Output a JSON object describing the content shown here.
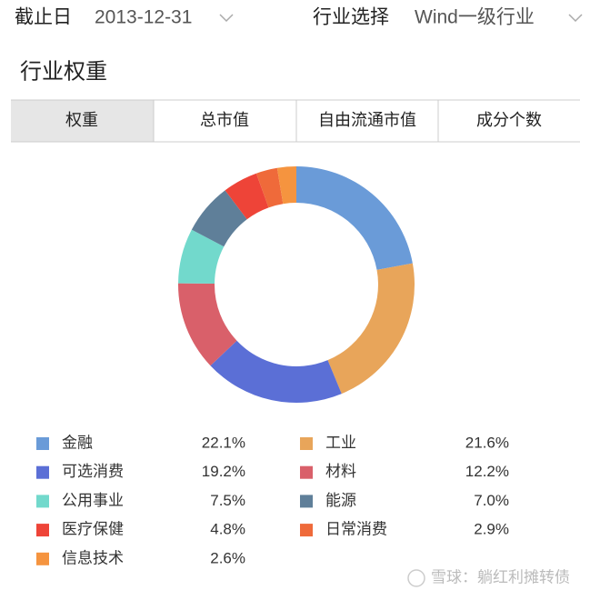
{
  "header": {
    "date_label": "截止日",
    "date_value": "2013-12-31",
    "industry_label": "行业选择",
    "industry_value": "Wind一级行业"
  },
  "section_title": "行业权重",
  "tabs": [
    "权重",
    "总市值",
    "自由流通市值",
    "成分个数"
  ],
  "watermark": "雪球：躺红利摊转债",
  "chart_data": {
    "type": "pie",
    "categories": [
      "金融",
      "工业",
      "可选消费",
      "材料",
      "公用事业",
      "能源",
      "医疗保健",
      "日常消费",
      "信息技术"
    ],
    "values": [
      22.1,
      21.6,
      19.2,
      12.2,
      7.5,
      7.0,
      4.8,
      2.9,
      2.6
    ],
    "value_labels": [
      "22.1%",
      "21.6%",
      "19.2%",
      "12.2%",
      "7.5%",
      "7.0%",
      "4.8%",
      "2.9%",
      "2.6%"
    ],
    "colors": [
      "#6a9bd8",
      "#e8a55a",
      "#5b6fd6",
      "#d9606a",
      "#72d9cc",
      "#5f7f99",
      "#ee4438",
      "#ef6a3a",
      "#f5943f"
    ]
  }
}
